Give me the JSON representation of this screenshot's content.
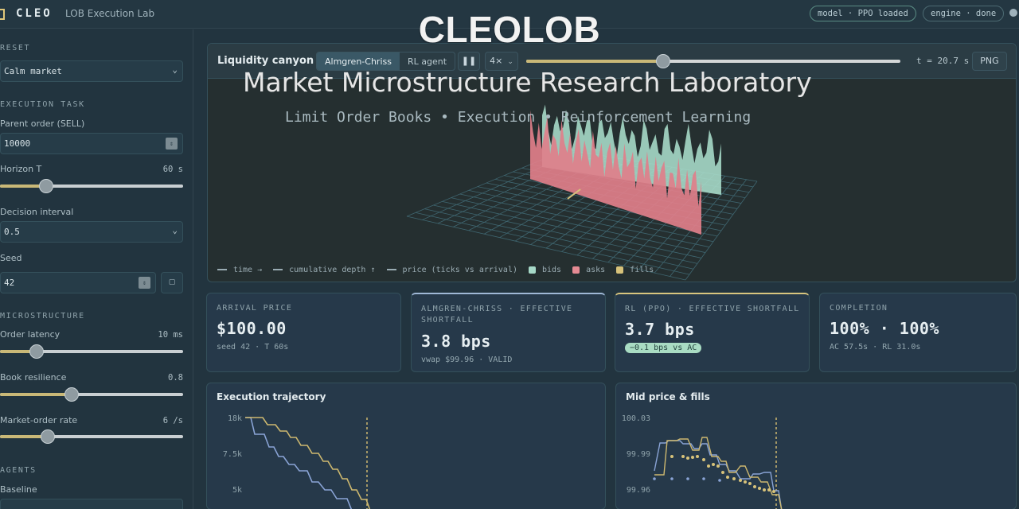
{
  "topbar": {
    "brand": "CLEO",
    "subtitle": "LOB Execution Lab",
    "model_status": "model · PPO loaded",
    "engine_status": "engine · done"
  },
  "overlay": {
    "title": "CLEOLOB",
    "subtitle": "Market Microstructure Research Laboratory",
    "tagline": "Limit Order Books • Execution • Reinforcement Learning"
  },
  "sidebar": {
    "preset_label": "RESET",
    "preset_value": "Calm market",
    "task_label": "EXECUTION TASK",
    "parent_order_label": "Parent order (SELL)",
    "parent_order_value": "10000",
    "horizon_label": "Horizon T",
    "horizon_value": "60 s",
    "horizon_level": 0.25,
    "decision_label": "Decision interval",
    "decision_value": "0.5",
    "seed_label": "Seed",
    "seed_value": "42",
    "micro_label": "MICROSTRUCTURE",
    "latency_label": "Order latency",
    "latency_value": "10 ms",
    "latency_level": 0.2,
    "resilience_label": "Book resilience",
    "resilience_value": "0.8",
    "resilience_level": 0.39,
    "mo_rate_label": "Market-order rate",
    "mo_rate_value": "6 /s",
    "mo_rate_level": 0.26,
    "agents_label": "AGENTS",
    "baseline_label": "Baseline"
  },
  "viewer": {
    "title": "Liquidity canyon",
    "tabs": [
      "Almgren-Chriss",
      "RL agent"
    ],
    "active_tab": 0,
    "pause_icon": "pause-icon",
    "speed": "4×",
    "time_level": 0.365,
    "time_readout": "t = 20.7 s",
    "png_button": "PNG",
    "legend": {
      "time": "time →",
      "depth": "cumulative depth ↑",
      "price": "price (ticks vs arrival)",
      "bids": "bids",
      "asks": "asks",
      "fills": "fills"
    },
    "colors": {
      "bids": "#a6d9c8",
      "asks": "#e58a93",
      "fills": "#d7c27a"
    }
  },
  "cards": [
    {
      "label": "ARRIVAL PRICE",
      "value": "$100.00",
      "sub": "seed 42 · T 60s"
    },
    {
      "label": "ALMGREN-CHRISS · EFFECTIVE SHORTFALL",
      "value": "3.8 bps",
      "sub": "vwap $99.96 · VALID"
    },
    {
      "label": "RL (PPO) · EFFECTIVE SHORTFALL",
      "value": "3.7 bps",
      "badge": "−0.1 bps vs AC"
    },
    {
      "label": "COMPLETION",
      "value": "100% · 100%",
      "sub": "AC 57.5s · RL 31.0s"
    }
  ],
  "trajectory": {
    "title": "Execution trajectory",
    "yticks": [
      "18k",
      "7.5k",
      "5k"
    ]
  },
  "midprice": {
    "title": "Mid price & fills",
    "yticks": [
      "100.03",
      "99.99",
      "99.96"
    ]
  }
}
